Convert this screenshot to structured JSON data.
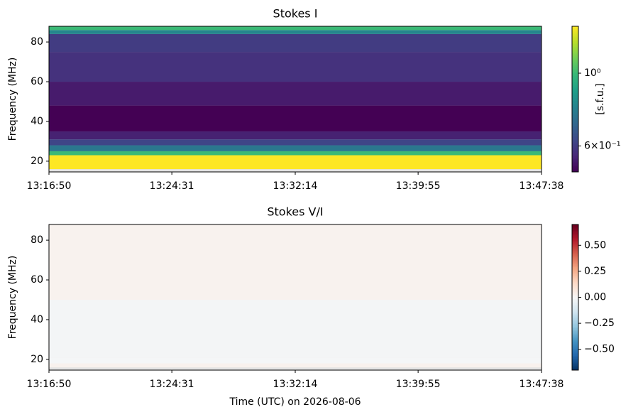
{
  "chart_data": [
    {
      "type": "heatmap",
      "title": "Stokes I",
      "ylabel": "Frequency (MHz)",
      "xlim": [
        "13:16:50",
        "13:47:38"
      ],
      "xticks": [
        "13:16:50",
        "13:24:31",
        "13:32:14",
        "13:39:55",
        "13:47:38"
      ],
      "ylim": [
        14.6,
        87.9
      ],
      "yticks": [
        20,
        40,
        60,
        80
      ],
      "y_bins": [
        14.6,
        16,
        23,
        25,
        28,
        31,
        35,
        48,
        60,
        75,
        84,
        86,
        87.9
      ],
      "values": [
        null,
        1.39,
        1.0,
        0.75,
        0.62,
        0.55,
        0.5,
        0.54,
        0.58,
        0.6,
        0.8,
        1.0
      ],
      "colormap": "viridis",
      "color_scale": "log",
      "clim": [
        0.5,
        1.39
      ],
      "cticks": [
        {
          "value": 1,
          "label": "10⁰"
        },
        {
          "value": 0.6,
          "label": "6×10⁻¹"
        }
      ],
      "colorbar_label": "[s.f.u.]"
    },
    {
      "type": "heatmap",
      "title": "Stokes V/I",
      "ylabel": "Frequency (MHz)",
      "xlabel": "Time (UTC) on 2026-08-06",
      "xlim": [
        "13:16:50",
        "13:47:38"
      ],
      "xticks": [
        "13:16:50",
        "13:24:31",
        "13:32:14",
        "13:39:55",
        "13:47:38"
      ],
      "ylim": [
        14.6,
        87.9
      ],
      "yticks": [
        20,
        40,
        60,
        80
      ],
      "y_bins": [
        14.6,
        16,
        18,
        21,
        50,
        87.9
      ],
      "values": [
        null,
        0.03,
        -0.01,
        -0.015,
        0.025
      ],
      "colormap": "RdBu_r",
      "color_scale": "linear",
      "clim": [
        -0.7,
        0.7
      ],
      "cticks": [
        {
          "value": 0.5,
          "label": "0.50"
        },
        {
          "value": 0.25,
          "label": "0.25"
        },
        {
          "value": 0,
          "label": "0.00"
        },
        {
          "value": -0.25,
          "label": "−0.25"
        },
        {
          "value": -0.5,
          "label": "−0.50"
        }
      ]
    }
  ]
}
